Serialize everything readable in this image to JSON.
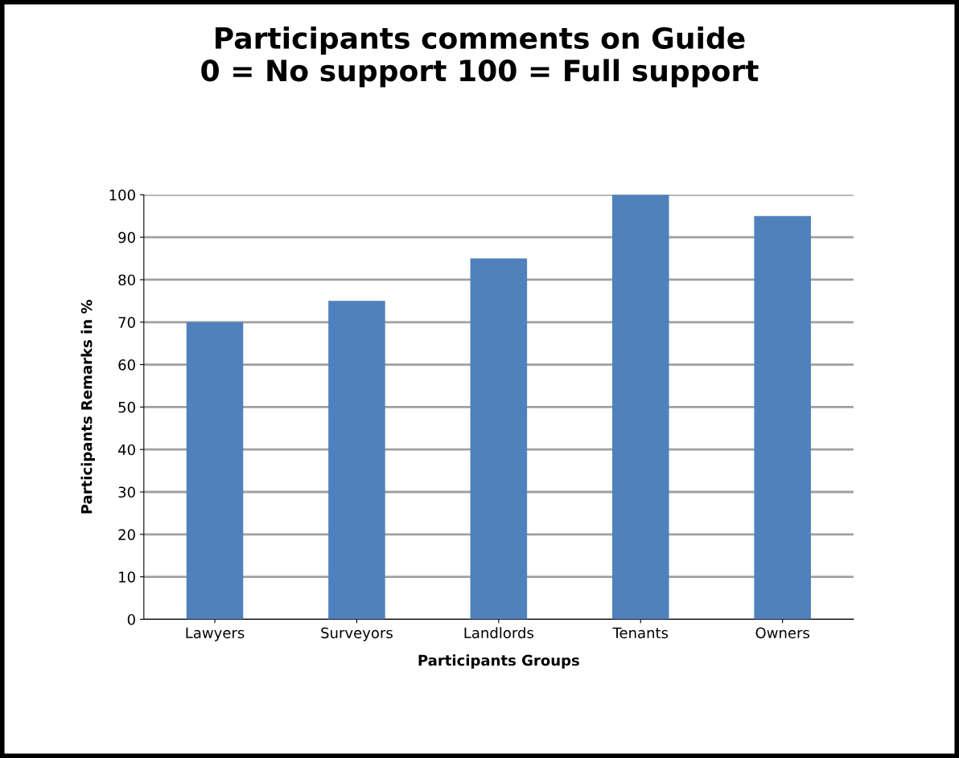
{
  "chart_data": {
    "type": "bar",
    "title": "Participants comments on Guide\n0 = No support 100 = Full support",
    "xlabel": "Participants Groups",
    "ylabel": "Participants Remarks in %",
    "categories": [
      "Lawyers",
      "Surveyors",
      "Landlords",
      "Tenants",
      "Owners"
    ],
    "values": [
      70,
      75,
      85,
      100,
      95
    ],
    "color": "#4f81bd",
    "ylim": [
      0,
      100
    ],
    "yticks": [
      0,
      10,
      20,
      30,
      40,
      50,
      60,
      70,
      80,
      90,
      100
    ],
    "grid": "y"
  }
}
